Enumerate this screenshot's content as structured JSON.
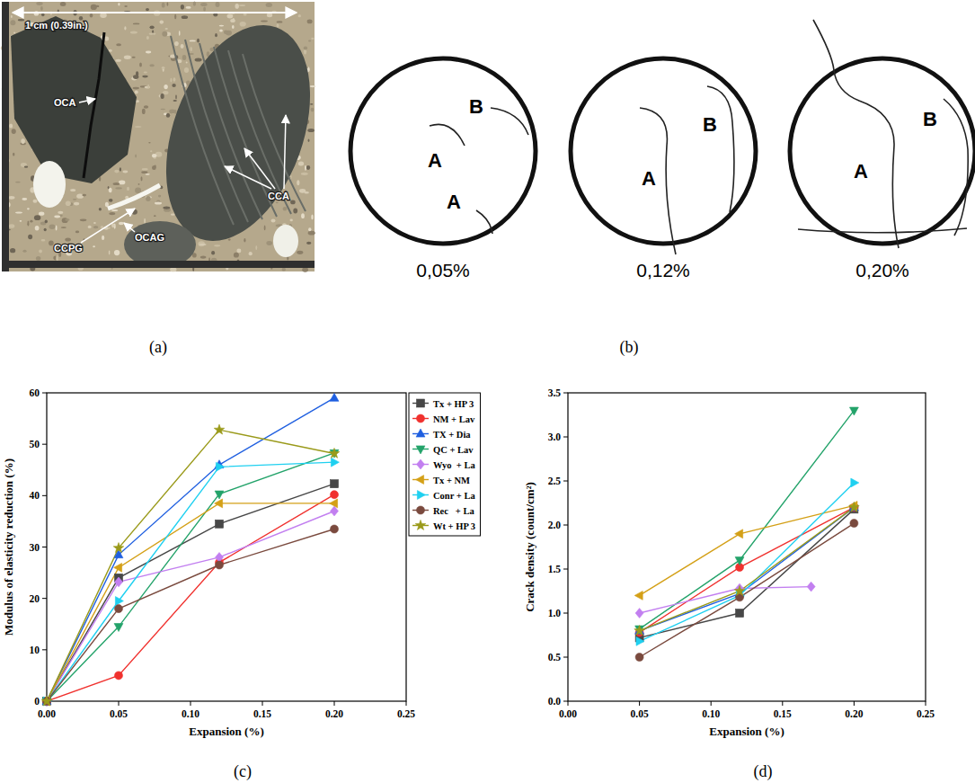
{
  "image": {
    "scale_label": "1 cm (0.39in.)",
    "labels": [
      "OCA",
      "CCA",
      "CCPG",
      "OCAG"
    ],
    "caption": "(a)"
  },
  "diagram": {
    "stages": [
      {
        "label": "0,05%",
        "cracks": [
          "A",
          "B",
          "A"
        ]
      },
      {
        "label": "0,12%",
        "cracks": [
          "A",
          "B"
        ]
      },
      {
        "label": "0,20%",
        "cracks": [
          "A",
          "B"
        ]
      }
    ],
    "caption": "(b)"
  },
  "chart_data": [
    {
      "type": "line",
      "caption": "(c)",
      "x_label": "Expansion (%)",
      "y_label": "Modulus of elasticity reduction (%)",
      "x": [
        0,
        0.05,
        0.12,
        0.2
      ],
      "xlim": [
        0,
        0.25
      ],
      "xticks": [
        {
          "value": 0,
          "label": "0.00"
        },
        {
          "value": 0.05,
          "label": "0.05"
        },
        {
          "value": 0.1,
          "label": "0.10"
        },
        {
          "value": 0.15,
          "label": "0.15"
        },
        {
          "value": 0.2,
          "label": "0.20"
        },
        {
          "value": 0.25,
          "label": "0.25"
        }
      ],
      "ylim": [
        0,
        60
      ],
      "yticks": [
        0,
        10,
        20,
        30,
        40,
        50,
        60
      ],
      "grid": false,
      "legend": "right",
      "series": [
        {
          "name": "Tx + HP 3",
          "color": "#474747",
          "marker": "square",
          "values": [
            0,
            24,
            34.5,
            42.3
          ]
        },
        {
          "name": "NM + Lav",
          "color": "#f0312e",
          "marker": "circle",
          "values": [
            0,
            5,
            27,
            40.2
          ]
        },
        {
          "name": "TX + Dia",
          "color": "#1f5fe0",
          "marker": "triangle-up",
          "values": [
            0,
            28.5,
            46,
            59
          ]
        },
        {
          "name": "QC + Lav",
          "color": "#23a36a",
          "marker": "triangle-down",
          "values": [
            0,
            14.5,
            40.3,
            48.3
          ]
        },
        {
          "name": "Wyo  + La",
          "color": "#c27ff0",
          "marker": "diamond",
          "values": [
            0,
            23.2,
            28,
            37
          ]
        },
        {
          "name": "Tx + NM",
          "color": "#d4a017",
          "marker": "triangle-left",
          "values": [
            0,
            26,
            38.5,
            38.5
          ]
        },
        {
          "name": "Conr + La",
          "color": "#1fd0f0",
          "marker": "triangle-right",
          "values": [
            0,
            19.5,
            45.6,
            46.5
          ]
        },
        {
          "name": "Rec   + La",
          "color": "#7a4a3e",
          "marker": "circle",
          "values": [
            0,
            18,
            26.5,
            33.5
          ]
        },
        {
          "name": "Wt + HP 3",
          "color": "#9a9a1a",
          "marker": "star",
          "values": [
            0,
            29.8,
            52.8,
            48.2
          ]
        }
      ]
    },
    {
      "type": "line",
      "caption": "(d)",
      "x_label": "Expansion (%)",
      "y_label": "Crack density (count/cm²)",
      "xlim": [
        0,
        0.25
      ],
      "xticks": [
        {
          "value": 0,
          "label": "0.00"
        },
        {
          "value": 0.05,
          "label": "0.05"
        },
        {
          "value": 0.1,
          "label": "0.10"
        },
        {
          "value": 0.15,
          "label": "0.15"
        },
        {
          "value": 0.2,
          "label": "0.20"
        },
        {
          "value": 0.25,
          "label": "0.25"
        }
      ],
      "ylim": [
        0,
        3.5
      ],
      "yticks": [
        {
          "value": 0,
          "label": "0.0"
        },
        {
          "value": 0.5,
          "label": "0.5"
        },
        {
          "value": 1,
          "label": "1.0"
        },
        {
          "value": 1.5,
          "label": "1.5"
        },
        {
          "value": 2,
          "label": "2.0"
        },
        {
          "value": 2.5,
          "label": "2.5"
        },
        {
          "value": 3,
          "label": "3.0"
        },
        {
          "value": 3.5,
          "label": "3.5"
        }
      ],
      "grid": false,
      "series": [
        {
          "color": "#474747",
          "marker": "square",
          "x": [
            0.05,
            0.12,
            0.2
          ],
          "values": [
            0.72,
            1.0,
            2.18
          ]
        },
        {
          "color": "#f0312e",
          "marker": "circle",
          "x": [
            0.05,
            0.12,
            0.2
          ],
          "values": [
            0.78,
            1.52,
            2.2
          ]
        },
        {
          "color": "#1f5fe0",
          "marker": "triangle-up",
          "x": [
            0.05,
            0.12,
            0.2
          ],
          "values": [
            0.8,
            1.22,
            2.2
          ]
        },
        {
          "color": "#23a36a",
          "marker": "triangle-down",
          "x": [
            0.05,
            0.12,
            0.2
          ],
          "values": [
            0.82,
            1.6,
            3.3
          ]
        },
        {
          "color": "#c27ff0",
          "marker": "diamond",
          "x": [
            0.05,
            0.12,
            0.17
          ],
          "values": [
            1.0,
            1.28,
            1.3
          ]
        },
        {
          "color": "#d4a017",
          "marker": "triangle-left",
          "x": [
            0.05,
            0.12,
            0.2
          ],
          "values": [
            1.2,
            1.9,
            2.22
          ]
        },
        {
          "color": "#1fd0f0",
          "marker": "triangle-right",
          "x": [
            0.05,
            0.12,
            0.2
          ],
          "values": [
            0.68,
            1.2,
            2.48
          ]
        },
        {
          "color": "#7a4a3e",
          "marker": "circle",
          "x": [
            0.05,
            0.12,
            0.2
          ],
          "values": [
            0.5,
            1.18,
            2.02
          ]
        },
        {
          "color": "#9a9a1a",
          "marker": "star",
          "x": [
            0.05,
            0.12,
            0.2
          ],
          "values": [
            0.8,
            1.25,
            2.2
          ]
        }
      ]
    }
  ]
}
